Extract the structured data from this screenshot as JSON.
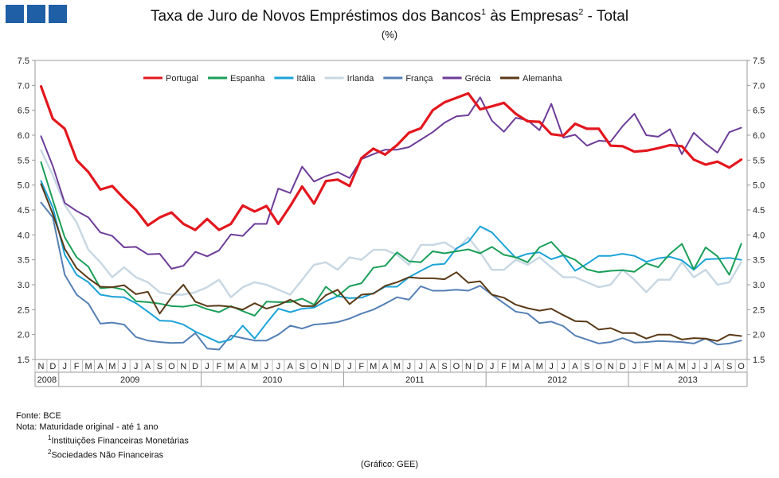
{
  "header": {
    "title_main": "Taxa de Juro de Novos Empréstimos  dos Bancos",
    "title_sup1": "1",
    "title_mid": " às Empresas",
    "title_sup2": "2",
    "title_end": " - Total",
    "subtitle": "(%)"
  },
  "notes": {
    "fonte": "Fonte: BCE",
    "nota": "Nota: Maturidade original - até 1 ano",
    "n1_sup": "1",
    "n1": "Instituições Financeiras Monetárias",
    "n2_sup": "2",
    "n2": "Sociedades Não Financeiras",
    "credit": "(Gráfico: GEE)"
  },
  "chart_data": {
    "type": "line",
    "ylim": [
      1.5,
      7.5
    ],
    "yticks": [
      "1.5",
      "2.0",
      "2.5",
      "3.0",
      "3.5",
      "4.0",
      "4.5",
      "5.0",
      "5.5",
      "6.0",
      "6.5",
      "7.0",
      "7.5"
    ],
    "grid": false,
    "legend_position": "top",
    "months": [
      "N",
      "D",
      "J",
      "F",
      "M",
      "A",
      "M",
      "J",
      "J",
      "A",
      "S",
      "O",
      "N",
      "D",
      "J",
      "F",
      "M",
      "A",
      "M",
      "J",
      "J",
      "A",
      "S",
      "O",
      "N",
      "D",
      "J",
      "F",
      "M",
      "A",
      "M",
      "J",
      "J",
      "A",
      "S",
      "O",
      "N",
      "D",
      "J",
      "F",
      "M",
      "A",
      "M",
      "J",
      "J",
      "A",
      "S",
      "O",
      "N",
      "D",
      "J",
      "F",
      "M",
      "A",
      "M",
      "J",
      "J",
      "A",
      "S",
      "O"
    ],
    "years": [
      {
        "label": "2008",
        "start": 0,
        "end": 2
      },
      {
        "label": "2009",
        "start": 2,
        "end": 14
      },
      {
        "label": "2010",
        "start": 14,
        "end": 26
      },
      {
        "label": "2011",
        "start": 26,
        "end": 38
      },
      {
        "label": "2012",
        "start": 38,
        "end": 50
      },
      {
        "label": "2013",
        "start": 50,
        "end": 60
      }
    ],
    "series": [
      {
        "name": "Portugal",
        "color": "#e3171e",
        "width": 3.2,
        "values": [
          6.98,
          6.33,
          6.13,
          5.5,
          5.26,
          4.91,
          4.98,
          4.73,
          4.5,
          4.19,
          4.35,
          4.45,
          4.22,
          4.1,
          4.32,
          4.1,
          4.22,
          4.59,
          4.47,
          4.58,
          4.22,
          4.58,
          4.97,
          4.63,
          5.08,
          5.11,
          4.98,
          5.54,
          5.73,
          5.61,
          5.8,
          6.05,
          6.14,
          6.5,
          6.66,
          6.75,
          6.84,
          6.52,
          6.58,
          6.65,
          6.43,
          6.28,
          6.27,
          6.02,
          5.99,
          6.23,
          6.13,
          6.13,
          5.79,
          5.78,
          5.67,
          5.69,
          5.74,
          5.8,
          5.78,
          5.51,
          5.41,
          5.47,
          5.35,
          5.51
        ]
      },
      {
        "name": "Espanha",
        "color": "#1a9f58",
        "width": 2,
        "values": [
          5.46,
          4.7,
          3.95,
          3.55,
          3.36,
          2.93,
          2.95,
          2.9,
          2.67,
          2.65,
          2.62,
          2.57,
          2.56,
          2.6,
          2.51,
          2.45,
          2.57,
          2.47,
          2.38,
          2.66,
          2.65,
          2.65,
          2.72,
          2.6,
          2.96,
          2.77,
          2.97,
          3.03,
          3.34,
          3.38,
          3.65,
          3.47,
          3.45,
          3.67,
          3.63,
          3.67,
          3.71,
          3.63,
          3.76,
          3.6,
          3.55,
          3.45,
          3.75,
          3.86,
          3.6,
          3.5,
          3.31,
          3.25,
          3.28,
          3.29,
          3.26,
          3.43,
          3.35,
          3.62,
          3.82,
          3.31,
          3.75,
          3.57,
          3.2,
          3.82
        ]
      },
      {
        "name": "Itália",
        "color": "#1ba3d7",
        "width": 2,
        "values": [
          5.08,
          4.55,
          3.6,
          3.2,
          3.05,
          2.8,
          2.76,
          2.75,
          2.63,
          2.46,
          2.28,
          2.27,
          2.2,
          2.06,
          1.95,
          1.84,
          1.9,
          2.18,
          1.92,
          2.23,
          2.52,
          2.45,
          2.52,
          2.54,
          2.67,
          2.77,
          2.73,
          2.74,
          2.83,
          2.96,
          2.96,
          3.15,
          3.28,
          3.4,
          3.42,
          3.73,
          3.86,
          4.17,
          4.05,
          3.79,
          3.54,
          3.62,
          3.65,
          3.51,
          3.59,
          3.28,
          3.42,
          3.58,
          3.58,
          3.62,
          3.58,
          3.46,
          3.53,
          3.56,
          3.49,
          3.3,
          3.51,
          3.52,
          3.54,
          3.5
        ]
      },
      {
        "name": "Irlanda",
        "color": "#c7d7e3",
        "width": 2.4,
        "values": [
          5.7,
          5.2,
          4.6,
          4.25,
          3.7,
          3.45,
          3.15,
          3.35,
          3.15,
          3.05,
          2.85,
          2.8,
          2.8,
          2.85,
          2.95,
          3.1,
          2.75,
          2.95,
          3.05,
          3.0,
          2.9,
          2.8,
          3.1,
          3.4,
          3.45,
          3.3,
          3.55,
          3.5,
          3.7,
          3.7,
          3.6,
          3.4,
          3.8,
          3.8,
          3.85,
          3.7,
          3.95,
          3.65,
          3.3,
          3.3,
          3.5,
          3.4,
          3.55,
          3.35,
          3.15,
          3.15,
          3.05,
          2.95,
          3.0,
          3.3,
          3.1,
          2.85,
          3.1,
          3.1,
          3.45,
          3.15,
          3.3,
          3.0,
          3.05,
          3.45
        ]
      },
      {
        "name": "França",
        "color": "#5580b5",
        "width": 2,
        "values": [
          4.65,
          4.35,
          3.2,
          2.8,
          2.62,
          2.22,
          2.24,
          2.2,
          1.95,
          1.88,
          1.85,
          1.83,
          1.84,
          2.03,
          1.72,
          1.7,
          1.98,
          1.93,
          1.88,
          1.88,
          2.0,
          2.18,
          2.12,
          2.2,
          2.22,
          2.25,
          2.32,
          2.42,
          2.5,
          2.62,
          2.75,
          2.7,
          2.97,
          2.88,
          2.88,
          2.9,
          2.88,
          2.98,
          2.8,
          2.63,
          2.46,
          2.42,
          2.23,
          2.26,
          2.17,
          1.98,
          1.9,
          1.82,
          1.85,
          1.93,
          1.84,
          1.85,
          1.87,
          1.86,
          1.85,
          1.82,
          1.92,
          1.8,
          1.82,
          1.88
        ]
      },
      {
        "name": "Grécia",
        "color": "#6e3d98",
        "width": 2,
        "values": [
          5.98,
          5.38,
          4.64,
          4.48,
          4.35,
          4.05,
          3.98,
          3.75,
          3.76,
          3.61,
          3.62,
          3.32,
          3.38,
          3.66,
          3.57,
          3.69,
          4.01,
          3.98,
          4.22,
          4.22,
          4.93,
          4.84,
          5.37,
          5.07,
          5.18,
          5.26,
          5.14,
          5.52,
          5.62,
          5.71,
          5.71,
          5.76,
          5.91,
          6.06,
          6.25,
          6.38,
          6.4,
          6.76,
          6.29,
          6.07,
          6.35,
          6.3,
          6.1,
          6.63,
          5.95,
          6.01,
          5.79,
          5.89,
          5.87,
          6.18,
          6.43,
          6.0,
          5.97,
          6.12,
          5.62,
          6.05,
          5.83,
          5.65,
          6.06,
          6.15
        ]
      },
      {
        "name": "Alemanha",
        "color": "#5a3a17",
        "width": 2,
        "values": [
          5.02,
          4.42,
          3.72,
          3.33,
          3.13,
          2.96,
          2.95,
          2.99,
          2.81,
          2.86,
          2.42,
          2.75,
          3.0,
          2.66,
          2.57,
          2.58,
          2.56,
          2.5,
          2.63,
          2.52,
          2.59,
          2.7,
          2.57,
          2.57,
          2.79,
          2.9,
          2.61,
          2.8,
          2.82,
          2.98,
          3.05,
          3.15,
          3.13,
          3.13,
          3.11,
          3.25,
          3.04,
          3.07,
          2.8,
          2.74,
          2.6,
          2.53,
          2.48,
          2.52,
          2.39,
          2.27,
          2.26,
          2.1,
          2.13,
          2.03,
          2.03,
          1.92,
          2.0,
          2.0,
          1.9,
          1.93,
          1.92,
          1.87,
          2.0,
          1.97
        ]
      }
    ]
  }
}
